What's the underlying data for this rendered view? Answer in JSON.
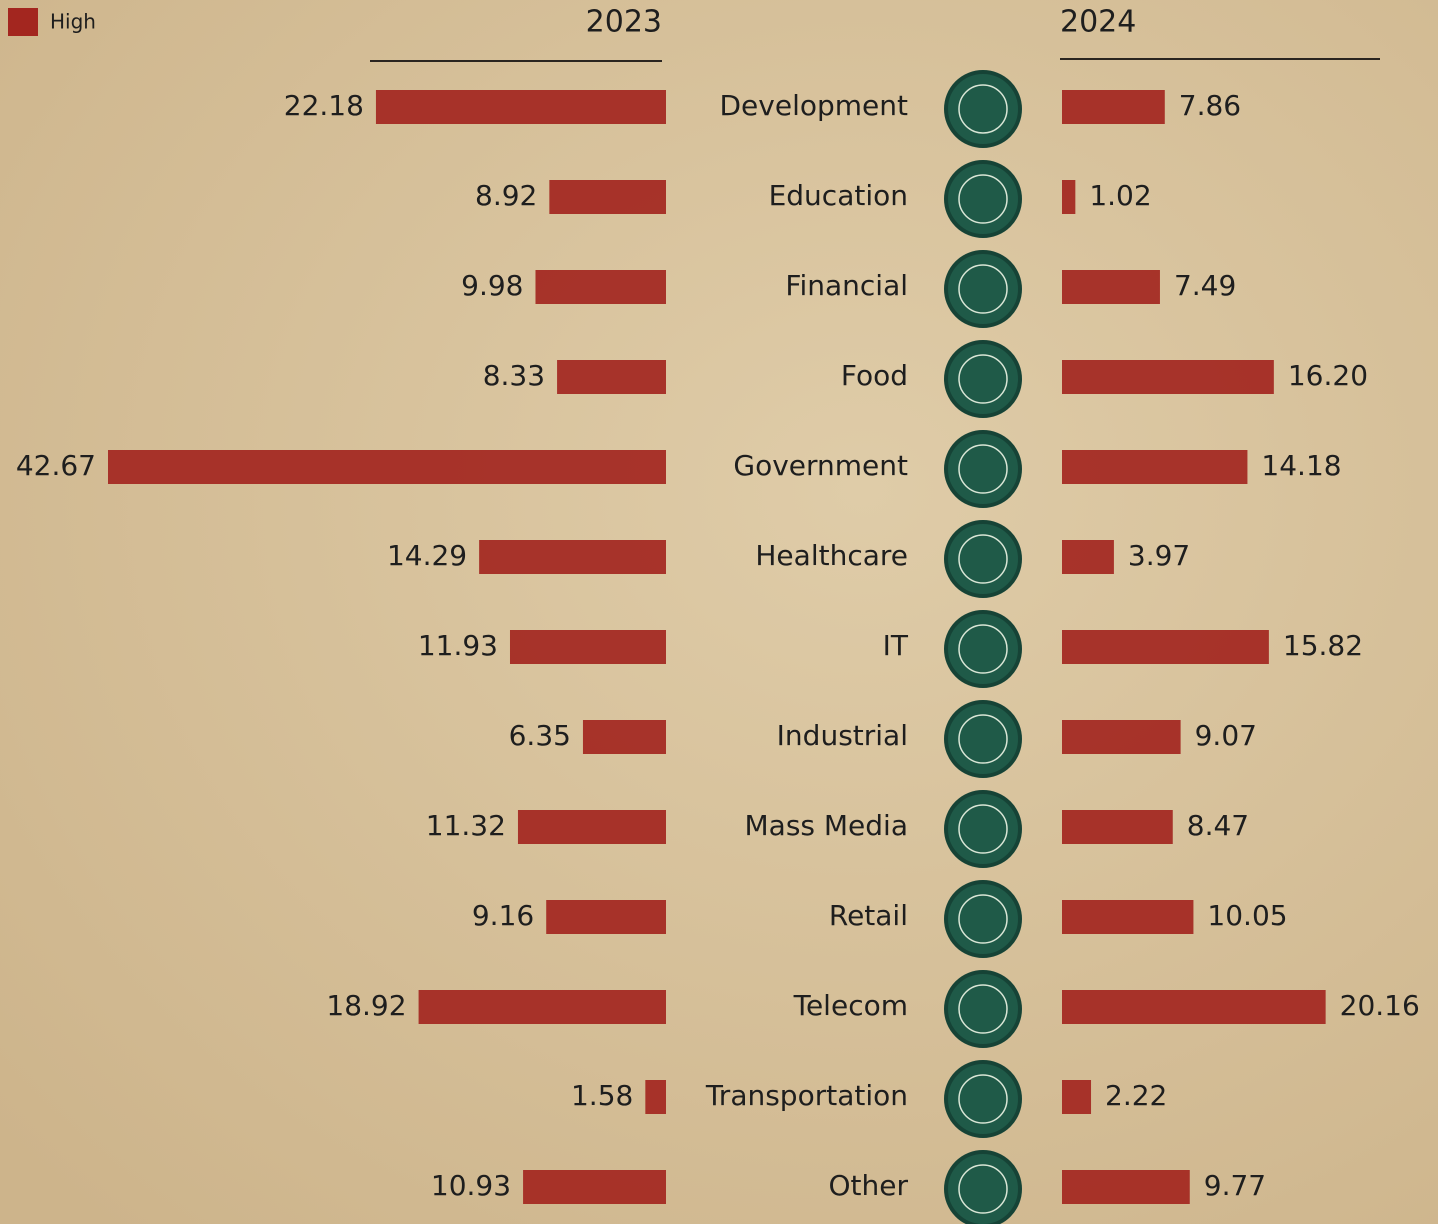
{
  "chart_data": {
    "type": "butterfly",
    "legend": {
      "label": "High",
      "color": "#a3261f"
    },
    "categories": [
      "Development",
      "Education",
      "Financial",
      "Food",
      "Government",
      "Healthcare",
      "IT",
      "Industrial",
      "Mass Media",
      "Retail",
      "Telecom",
      "Transportation",
      "Other"
    ],
    "series": [
      {
        "name": "2023",
        "color": "#a3261f",
        "values": [
          22.18,
          8.92,
          9.98,
          8.33,
          42.67,
          14.29,
          11.93,
          6.35,
          11.32,
          9.16,
          18.92,
          1.58,
          10.93
        ]
      },
      {
        "name": "2024",
        "color": "#a3261f",
        "values": [
          7.86,
          1.02,
          7.49,
          16.2,
          14.18,
          3.97,
          15.82,
          9.07,
          8.47,
          10.05,
          20.16,
          2.22,
          9.77
        ],
        "value_labels": [
          "7.86",
          "1.02",
          "7.49",
          "16.20",
          "14.18",
          "3.97",
          "15.82",
          "9.07",
          "8.47",
          "10.05",
          "20.16",
          "2.22",
          "9.77"
        ]
      }
    ]
  }
}
